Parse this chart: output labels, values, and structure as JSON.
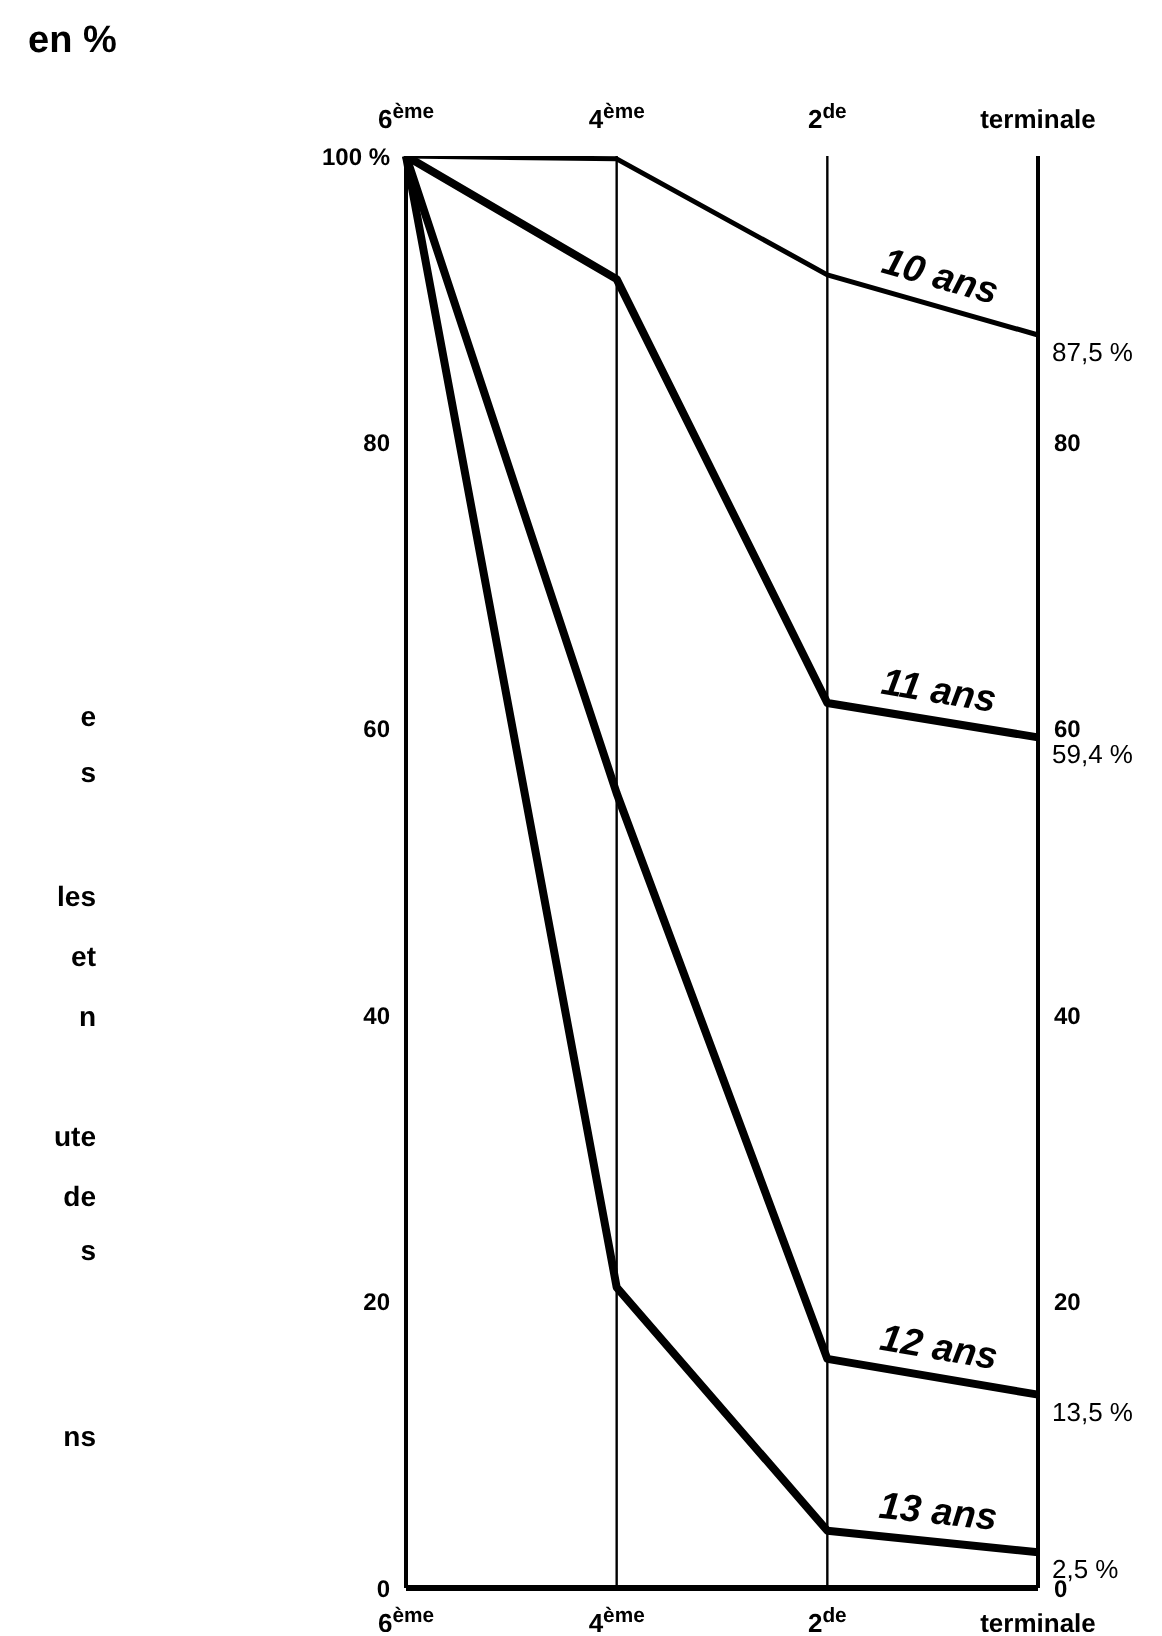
{
  "chart_data": {
    "type": "line",
    "categories": [
      "6$^{ème}$",
      "4$^{ème}$",
      "2$^{de}$",
      "terminale"
    ],
    "series": [
      {
        "name": "10 ans",
        "color": "#000000",
        "values": [
          100,
          99.8,
          91.7,
          87.5
        ],
        "value_labels": [
          null,
          null,
          null,
          "87,5 %"
        ]
      },
      {
        "name": "11 ans",
        "color": "#000000",
        "values": [
          100,
          91.4,
          61.8,
          59.4
        ],
        "value_labels": [
          null,
          null,
          null,
          "59,4 %"
        ]
      },
      {
        "name": "12 ans",
        "color": "#000000",
        "values": [
          100,
          55.5,
          16,
          13.5
        ],
        "value_labels": [
          null,
          null,
          null,
          "13,5 %"
        ]
      },
      {
        "name": "13 ans",
        "color": "#000000",
        "values": [
          100,
          21,
          4,
          2.5
        ],
        "value_labels": [
          null,
          null,
          null,
          "2,5 %"
        ]
      }
    ],
    "ylim": [
      0,
      100
    ],
    "yticks": [
      0,
      20,
      40,
      60,
      80,
      {
        "value": 100,
        "label": "100 %"
      }
    ],
    "y2lim": [
      0,
      100
    ],
    "y2ticks": [
      0,
      20,
      40,
      60,
      80
    ],
    "grid": "x",
    "legend": false,
    "marker": "none",
    "line_style": "solid",
    "annotations": [
      "en %",
      "e",
      "s",
      "les",
      "et",
      "n",
      "ute",
      "de",
      "s",
      "ns"
    ]
  }
}
